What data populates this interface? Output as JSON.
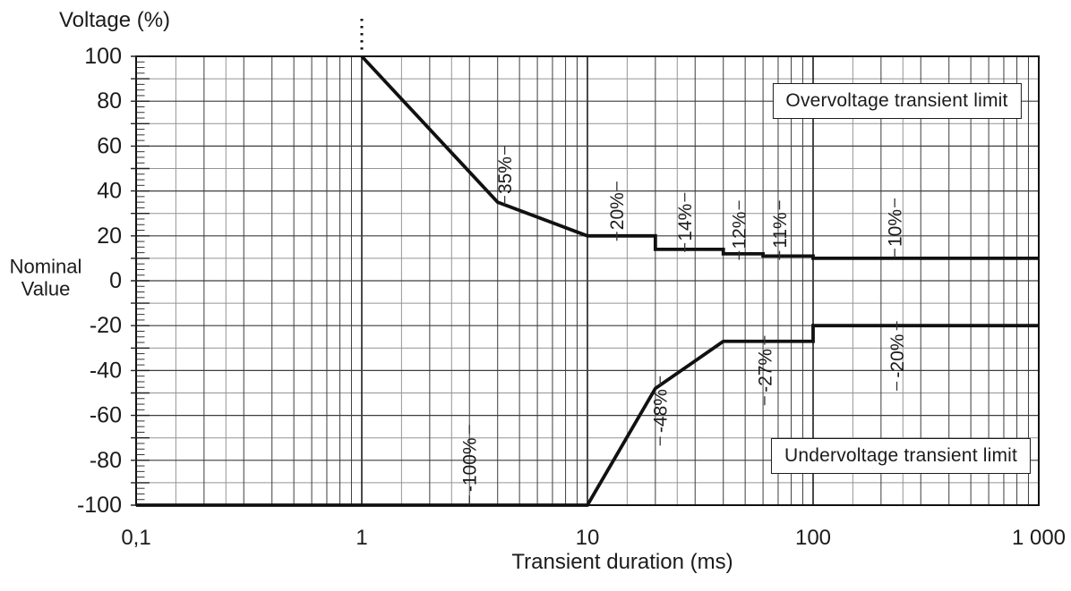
{
  "chart_data": {
    "type": "line",
    "title": "",
    "x_axis": {
      "label": "Transient duration (ms)",
      "scale": "log",
      "range": [
        0.1,
        1000
      ],
      "ticks": [
        {
          "value": 0.1,
          "label": "0,1"
        },
        {
          "value": 1,
          "label": "1"
        },
        {
          "value": 10,
          "label": "10"
        },
        {
          "value": 100,
          "label": "100"
        },
        {
          "value": 1000,
          "label": "1 000"
        }
      ]
    },
    "y_axis": {
      "label": "Voltage (%)",
      "zero_note": "Nominal\nValue",
      "range": [
        -100,
        100
      ],
      "major_gridline_step": 20,
      "minor_gridline_step": 10,
      "tick_step": 2.5,
      "ticks": [
        {
          "value": 100,
          "label": "100"
        },
        {
          "value": 80,
          "label": "80"
        },
        {
          "value": 60,
          "label": "60"
        },
        {
          "value": 40,
          "label": "40"
        },
        {
          "value": 20,
          "label": "20"
        },
        {
          "value": 0,
          "label": "0"
        },
        {
          "value": -20,
          "label": "-20"
        },
        {
          "value": -40,
          "label": "-40"
        },
        {
          "value": -60,
          "label": "-60"
        },
        {
          "value": -80,
          "label": "-80"
        },
        {
          "value": -100,
          "label": "-100"
        }
      ]
    },
    "series": [
      {
        "id": "overvoltage",
        "name": "Overvoltage transient limit",
        "points": [
          [
            1,
            100
          ],
          [
            4,
            35
          ],
          [
            10,
            20
          ],
          [
            20,
            20
          ],
          [
            20,
            14
          ],
          [
            40,
            14
          ],
          [
            40,
            12
          ],
          [
            60,
            12
          ],
          [
            60,
            11
          ],
          [
            100,
            11
          ],
          [
            100,
            10
          ],
          [
            1000,
            10
          ]
        ]
      },
      {
        "id": "undervoltage",
        "name": "Undervoltage transient limit",
        "points": [
          [
            0.1,
            -100
          ],
          [
            10,
            -100
          ],
          [
            20,
            -48
          ],
          [
            40,
            -27
          ],
          [
            100,
            -27
          ],
          [
            100,
            -20
          ],
          [
            1000,
            -20
          ]
        ]
      }
    ],
    "annotations": [
      {
        "text": "35%",
        "x": 4.3,
        "y": 47
      },
      {
        "text": "20%",
        "x": 13.5,
        "y": 31
      },
      {
        "text": "14%",
        "x": 27,
        "y": 26
      },
      {
        "text": "12%",
        "x": 47,
        "y": 22.5
      },
      {
        "text": "11%",
        "x": 71,
        "y": 22.5
      },
      {
        "text": "10%",
        "x": 230,
        "y": 23.5
      },
      {
        "text": "-100%",
        "x": 3,
        "y": -82
      },
      {
        "text": "-48%",
        "x": 21,
        "y": -58
      },
      {
        "text": "-27%",
        "x": 61,
        "y": -40
      },
      {
        "text": "-20%",
        "x": 235,
        "y": -33.5
      }
    ],
    "label_boxes": [
      {
        "series": "overvoltage",
        "x": 235,
        "y": 80
      },
      {
        "series": "undervoltage",
        "x": 245,
        "y": -78
      }
    ],
    "continuation_marker": {
      "series": "overvoltage",
      "x": 1,
      "style": "dotted-vertical-above-plot"
    },
    "grid": {
      "log_minor_gray_multipliers": [
        1.5,
        2.5
      ],
      "log_minor_dark_multipliers": [
        2,
        3,
        4,
        5,
        6,
        7,
        8,
        9
      ]
    },
    "colors": {
      "curve": "#111111",
      "grid_major": "#3d3d3d",
      "grid_minor": "#949494",
      "decade_line": "#1d1d1d",
      "text": "#1b1b1b",
      "background": "#ffffff"
    }
  }
}
